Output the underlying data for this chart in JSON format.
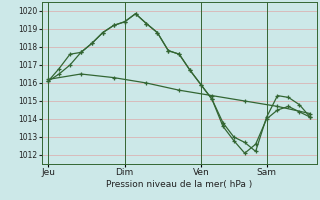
{
  "background_color": "#cce8e8",
  "plot_bg_color": "#cce8e8",
  "grid_color": "#ddaaaa",
  "line_color": "#336633",
  "marker_color": "#336633",
  "ylim": [
    1011.5,
    1020.5
  ],
  "yticks": [
    1012,
    1013,
    1014,
    1015,
    1016,
    1017,
    1018,
    1019,
    1020
  ],
  "xlabel": "Pression niveau de la mer( hPa )",
  "day_labels": [
    "Jeu",
    "Dim",
    "Ven",
    "Sam"
  ],
  "day_positions": [
    0.0,
    3.5,
    7.0,
    10.0
  ],
  "xlim": [
    -0.3,
    12.3
  ],
  "series1_x": [
    0.0,
    0.5,
    1.0,
    1.5,
    2.0,
    2.5,
    3.0,
    3.5,
    4.0,
    4.5,
    5.0,
    5.5,
    6.0,
    6.5,
    7.0,
    7.5,
    8.0,
    8.5,
    9.0,
    9.5,
    10.0,
    10.5,
    11.0,
    11.5,
    12.0
  ],
  "series1_y": [
    1016.1,
    1016.5,
    1017.0,
    1017.7,
    1018.2,
    1018.8,
    1019.2,
    1019.4,
    1019.85,
    1019.3,
    1018.8,
    1017.8,
    1017.6,
    1016.7,
    1015.9,
    1015.1,
    1013.8,
    1013.0,
    1012.7,
    1012.2,
    1014.1,
    1015.3,
    1015.2,
    1014.8,
    1014.1
  ],
  "series2_x": [
    0.0,
    0.5,
    1.0,
    1.5,
    2.0,
    2.5,
    3.0,
    3.5,
    4.0,
    4.5,
    5.0,
    5.5,
    6.0,
    6.5,
    7.0,
    7.5,
    8.0,
    8.5,
    9.0,
    9.5,
    10.0,
    10.5,
    11.0,
    11.5,
    12.0
  ],
  "series2_y": [
    1016.1,
    1016.8,
    1017.6,
    1017.7,
    1018.2,
    1018.8,
    1019.2,
    1019.4,
    1019.85,
    1019.3,
    1018.8,
    1017.8,
    1017.6,
    1016.7,
    1015.9,
    1015.1,
    1013.6,
    1012.8,
    1012.1,
    1012.6,
    1014.0,
    1014.5,
    1014.7,
    1014.4,
    1014.1
  ],
  "series3_x": [
    0.0,
    1.5,
    3.0,
    4.5,
    6.0,
    7.5,
    9.0,
    10.5,
    12.0
  ],
  "series3_y": [
    1016.2,
    1016.5,
    1016.3,
    1016.0,
    1015.6,
    1015.3,
    1015.0,
    1014.7,
    1014.3
  ],
  "vline_color": "#336633",
  "vline_positions": [
    0.0,
    3.5,
    7.0,
    10.0
  ]
}
